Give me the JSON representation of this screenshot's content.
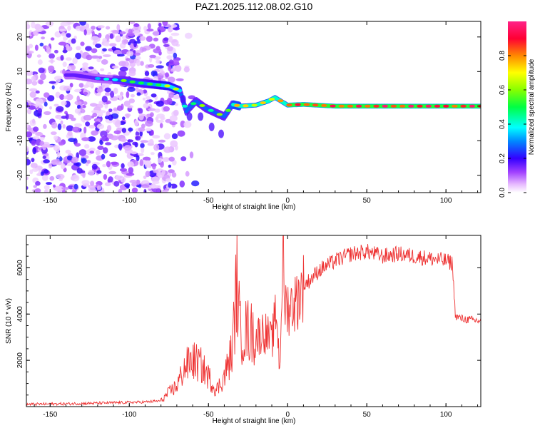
{
  "title": "PAZ1.2025.112.08.02.G10",
  "chart_data": [
    {
      "type": "heatmap",
      "title": "PAZ1.2025.112.08.02.G10",
      "xlabel": "Height of straight line (km)",
      "ylabel": "Frequency (Hz)",
      "xlim": [
        -165,
        122
      ],
      "ylim": [
        -25,
        24.5
      ],
      "xticks": [
        -150,
        -100,
        -50,
        0,
        50,
        100
      ],
      "yticks": [
        -20,
        -10,
        0,
        10,
        20
      ],
      "colorbar": {
        "label": "Normalized spectral amplitude",
        "range": [
          0,
          1
        ],
        "ticks": [
          0.0,
          0.2,
          0.4,
          0.6,
          0.8
        ],
        "colormap": "hsv-rainbow"
      },
      "ridge": {
        "description": "dominant frequency track",
        "x": [
          -135,
          -120,
          -105,
          -95,
          -85,
          -75,
          -68,
          -64,
          -58,
          -52,
          -45,
          -40,
          -35,
          -30,
          -20,
          -12,
          -8,
          0,
          10,
          30,
          60,
          122
        ],
        "freq": [
          9,
          8,
          7.5,
          6.8,
          6.3,
          5.8,
          4.5,
          -1.5,
          1.5,
          -0.5,
          -2,
          -3,
          0.5,
          0,
          0.3,
          1.5,
          2.5,
          0.3,
          0.5,
          0,
          0,
          0
        ]
      }
    },
    {
      "type": "line",
      "xlabel": "Height of straight line (km)",
      "ylabel": "SNR (10 * v/v)",
      "xlim": [
        -165,
        122
      ],
      "ylim": [
        0,
        7400
      ],
      "xticks": [
        -150,
        -100,
        -50,
        0,
        50,
        100
      ],
      "yticks": [
        2000,
        4000,
        6000
      ],
      "color": "#ee3333",
      "series": [
        {
          "name": "SNR",
          "x": [
            -165,
            -140,
            -120,
            -100,
            -90,
            -80,
            -75,
            -70,
            -65,
            -60,
            -55,
            -50,
            -45,
            -40,
            -35,
            -32,
            -30,
            -25,
            -20,
            -15,
            -10,
            -7,
            -5,
            -3,
            -2,
            0,
            5,
            10,
            20,
            30,
            40,
            50,
            60,
            70,
            80,
            90,
            100,
            104,
            106,
            110,
            115,
            122
          ],
          "y": [
            100,
            120,
            150,
            180,
            200,
            250,
            600,
            900,
            1700,
            2000,
            1800,
            1300,
            700,
            1300,
            2400,
            5500,
            3200,
            3300,
            3000,
            3300,
            2800,
            4200,
            1500,
            7000,
            4500,
            4300,
            4500,
            5200,
            5900,
            6300,
            6600,
            6700,
            6500,
            6600,
            6500,
            6400,
            6300,
            6200,
            3900,
            3800,
            3750,
            3700
          ]
        }
      ]
    }
  ]
}
